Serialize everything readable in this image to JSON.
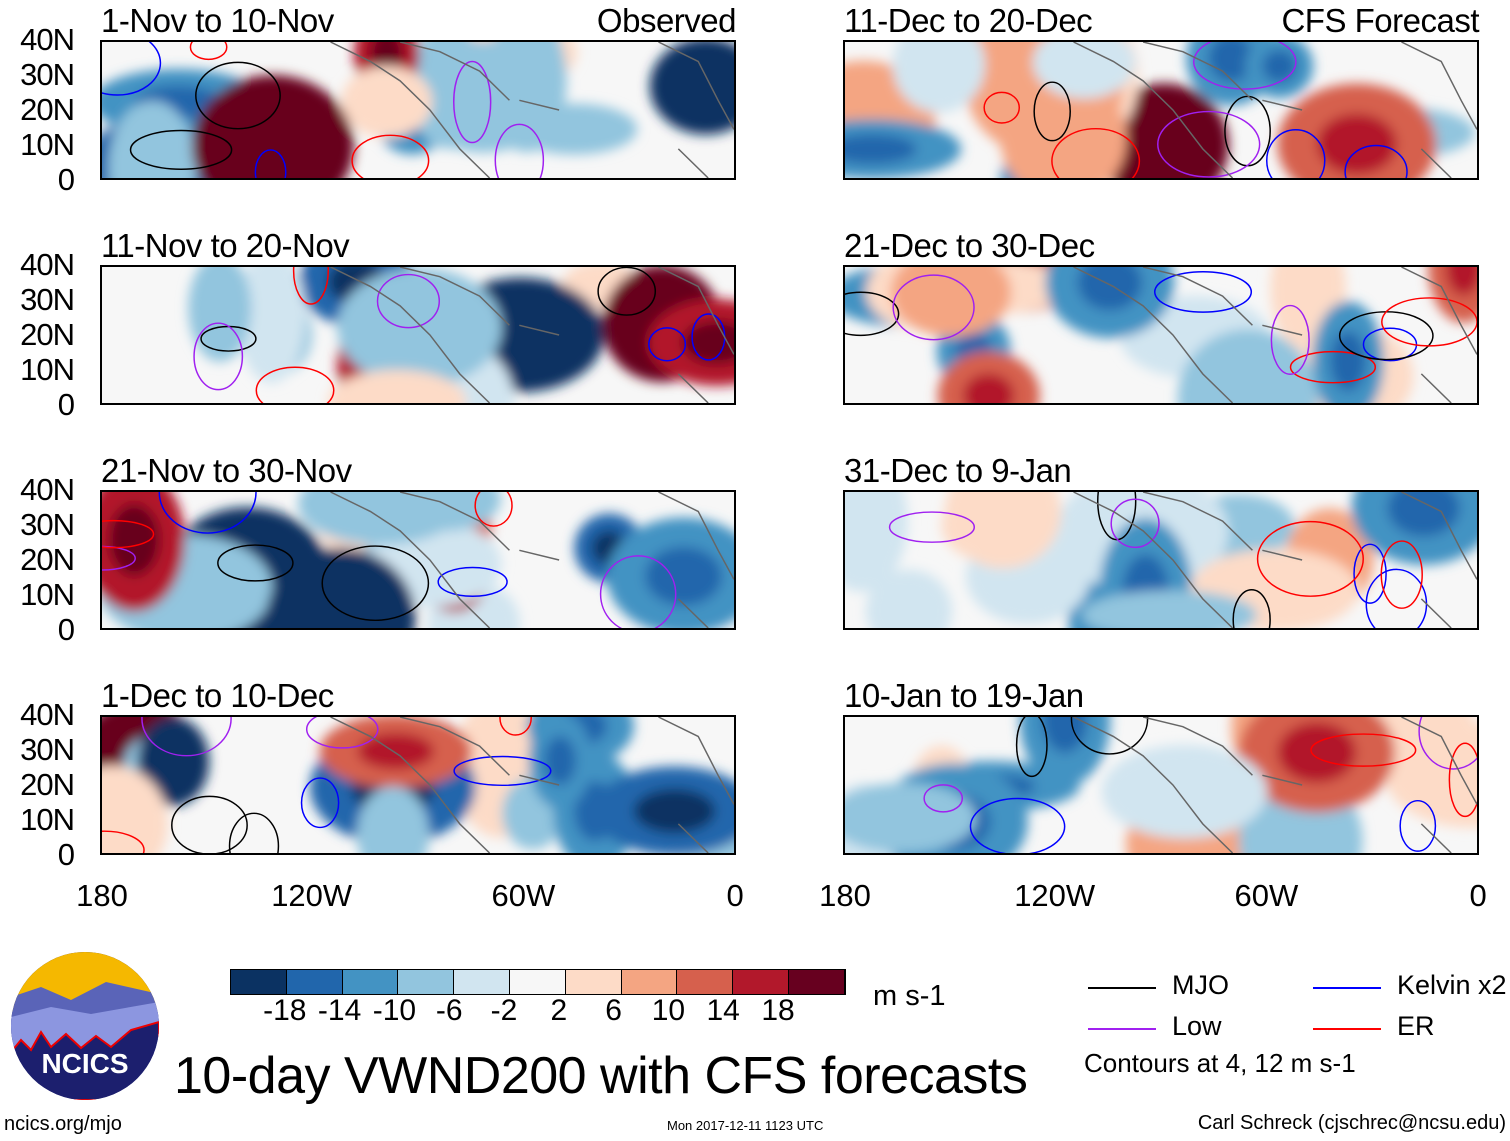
{
  "observed_label": "Observed",
  "forecast_label": "CFS Forecast",
  "panels_left": [
    "1-Nov to 10-Nov",
    "11-Nov to 20-Nov",
    "21-Nov to 30-Nov",
    "1-Dec to 10-Dec"
  ],
  "panels_right": [
    "11-Dec to 20-Dec",
    "21-Dec to 30-Dec",
    "31-Dec to 9-Jan",
    "10-Jan to 19-Jan"
  ],
  "lat_labels": [
    "40N",
    "30N",
    "20N",
    "10N",
    "0"
  ],
  "lon_labels": [
    "180",
    "120W",
    "60W",
    "0"
  ],
  "colorbar": {
    "colors": [
      "#0b3262",
      "#2166ac",
      "#4393c3",
      "#92c5de",
      "#d1e5f0",
      "#f7f7f7",
      "#fddbc7",
      "#f4a582",
      "#d6604d",
      "#b2182b",
      "#67001f"
    ],
    "labels": [
      "-18",
      "-14",
      "-10",
      "-6",
      "-2",
      "2",
      "6",
      "10",
      "14",
      "18"
    ],
    "units": "m s-1"
  },
  "legend": {
    "items": [
      {
        "label": "MJO",
        "color": "#000000"
      },
      {
        "label": "Kelvin x2",
        "color": "#0000ff"
      },
      {
        "label": "Low",
        "color": "#a020f0"
      },
      {
        "label": "ER",
        "color": "#ff0000"
      }
    ],
    "note": "Contours at 4, 12 m s-1"
  },
  "title": "10-day VWND200 with CFS forecasts",
  "logo_text": "NCICS",
  "footer": {
    "url": "ncics.org/mjo",
    "timestamp": "Mon 2017-12-11 1123 UTC",
    "author": "Carl Schreck (cjschrec@ncsu.edu)"
  }
}
